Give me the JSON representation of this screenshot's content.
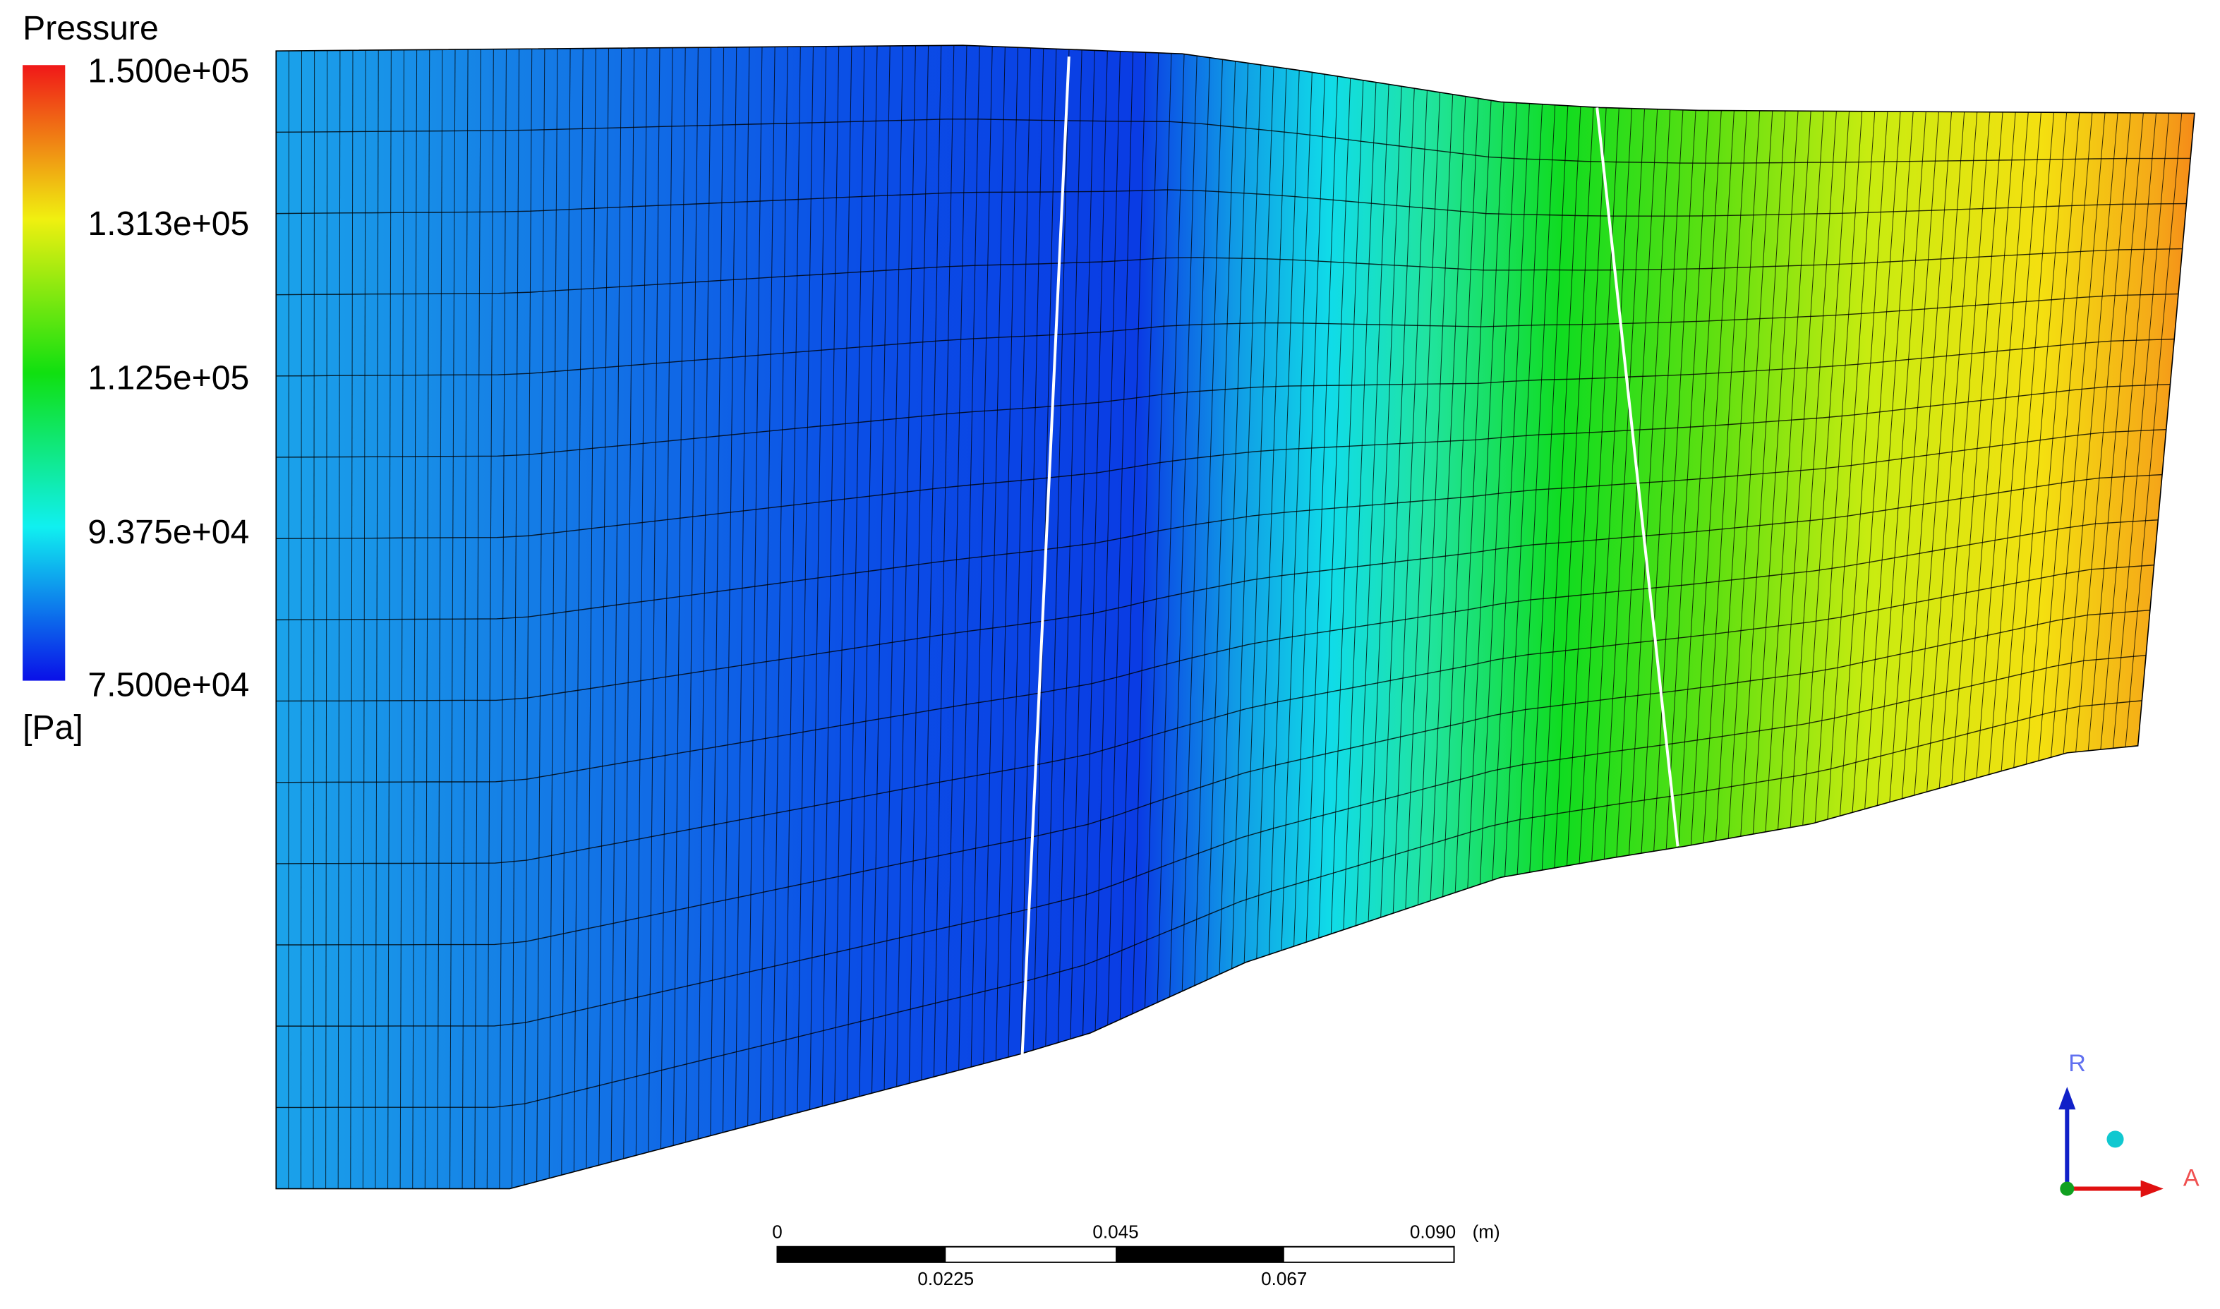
{
  "legend": {
    "title": "Pressure",
    "ticks": [
      "1.500e+05",
      "1.313e+05",
      "1.125e+05",
      "9.375e+04",
      "7.500e+04"
    ],
    "unit": "[Pa]"
  },
  "scale_bar": {
    "top_labels": [
      "0",
      "0.045",
      "0.090"
    ],
    "unit": "(m)",
    "bottom_labels": [
      "0.0225",
      "0.067"
    ]
  },
  "axes": {
    "radial": "R",
    "axial": "A"
  }
}
